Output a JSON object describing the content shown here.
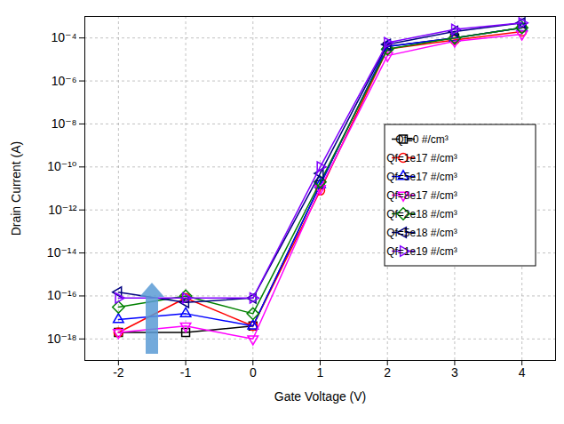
{
  "chart_data": {
    "type": "line",
    "x_label": "Gate Voltage (V)",
    "y_label": "Drain Current (A)",
    "x": [
      -2,
      -1,
      0,
      1,
      2,
      3,
      4
    ],
    "xlim": [
      -2.5,
      4.5
    ],
    "xticks": [
      -2,
      -1,
      0,
      1,
      2,
      3,
      4
    ],
    "ylim": [
      1e-19,
      0.001
    ],
    "yticks": [
      {
        "value": 1e-18,
        "label": "10⁻¹⁸"
      },
      {
        "value": 1e-16,
        "label": "10⁻¹⁶"
      },
      {
        "value": 1e-14,
        "label": "10⁻¹⁴"
      },
      {
        "value": 1e-12,
        "label": "10⁻¹²"
      },
      {
        "value": 1e-10,
        "label": "10⁻¹⁰"
      },
      {
        "value": 1e-08,
        "label": "10⁻⁸"
      },
      {
        "value": 1e-06,
        "label": "10⁻⁶"
      },
      {
        "value": 0.0001,
        "label": "10⁻⁴"
      }
    ],
    "log": "y",
    "grid": true,
    "legend": "right",
    "series": [
      {
        "name": "Qf=0 #/cm³",
        "color": "#000000",
        "marker": "square",
        "values": [
          2e-18,
          2e-18,
          4e-18,
          1.5e-11,
          4e-05,
          0.0001,
          0.0003
        ]
      },
      {
        "name": "Qf=1e17 #/cm³",
        "color": "#ff0000",
        "marker": "circle",
        "values": [
          2e-18,
          8e-17,
          4e-18,
          8e-12,
          3e-05,
          8e-05,
          0.0002
        ]
      },
      {
        "name": "Qf=5e17 #/cm³",
        "color": "#0000ff",
        "marker": "triangle-up",
        "values": [
          8e-18,
          1.5e-17,
          4e-18,
          1.5e-11,
          4e-05,
          0.0001,
          0.0003
        ]
      },
      {
        "name": "Qf=8e17 #/cm³",
        "color": "#ff00ff",
        "marker": "triangle-down",
        "values": [
          2e-18,
          4e-18,
          1e-18,
          1e-11,
          1.5e-05,
          7e-05,
          0.00015
        ]
      },
      {
        "name": "Qf=2e18 #/cm³",
        "color": "#008000",
        "marker": "diamond",
        "values": [
          3e-17,
          1e-16,
          1.5e-17,
          2e-11,
          3e-05,
          0.0001,
          0.0003
        ]
      },
      {
        "name": "Qf=5e18 #/cm³",
        "color": "#000080",
        "marker": "triangle-left",
        "values": [
          1.5e-16,
          5e-17,
          8e-17,
          5e-11,
          5e-05,
          0.0002,
          0.0005
        ]
      },
      {
        "name": "Qf=1e19 #/cm³",
        "color": "#8000ff",
        "marker": "triangle-right",
        "values": [
          8e-17,
          8e-17,
          8e-17,
          1e-10,
          6e-05,
          0.00025,
          0.0005
        ]
      }
    ]
  }
}
